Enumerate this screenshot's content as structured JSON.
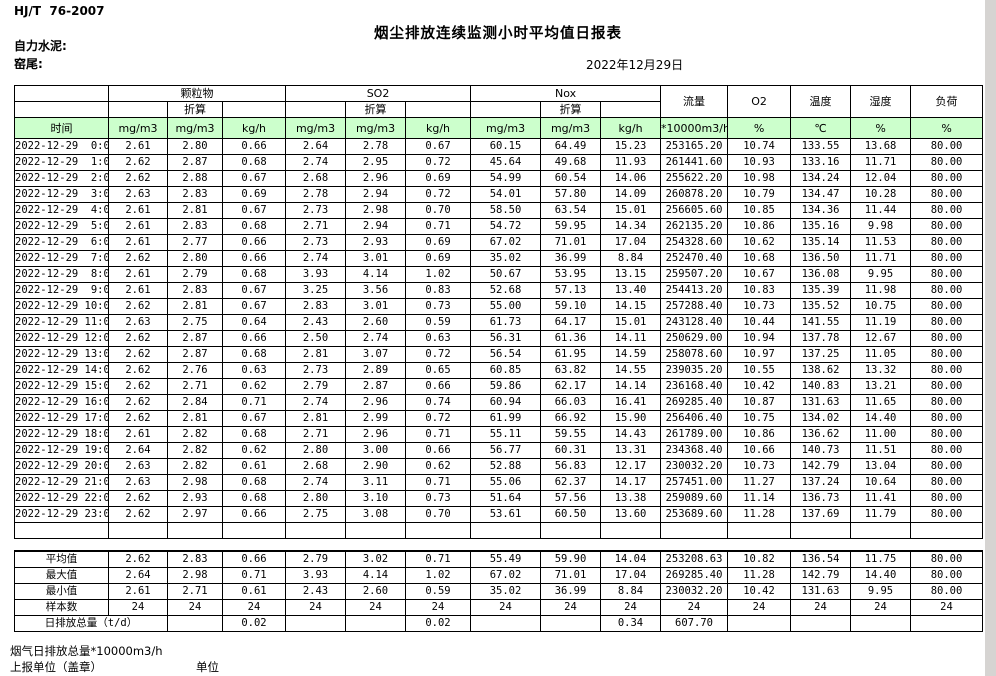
{
  "header": {
    "standard": "HJ/T  76-2007",
    "title": "烟尘排放连续监测小时平均值日报表",
    "company": "自力水泥:",
    "location": "窑尾:",
    "date": "2022年12月29日"
  },
  "table": {
    "header": {
      "time": "时间",
      "groups": [
        {
          "label": "颗粒物"
        },
        {
          "label": "SO2"
        },
        {
          "label": "Nox"
        }
      ],
      "converted": "折算",
      "flow": "流量",
      "o2": "O2",
      "temperature": "温度",
      "humidity": "湿度",
      "load": "负荷",
      "unit_mgm3": "mg/m3",
      "unit_kgh": "kg/h",
      "unit_flow": "*10000m3/h",
      "unit_percent": "%",
      "unit_celsius": "℃"
    },
    "rows": [
      [
        "2022-12-29  0:00",
        "2.61",
        "2.80",
        "0.66",
        "2.64",
        "2.78",
        "0.67",
        "60.15",
        "64.49",
        "15.23",
        "253165.20",
        "10.74",
        "133.55",
        "13.68",
        "80.00"
      ],
      [
        "2022-12-29  1:00",
        "2.62",
        "2.87",
        "0.68",
        "2.74",
        "2.95",
        "0.72",
        "45.64",
        "49.68",
        "11.93",
        "261441.60",
        "10.93",
        "133.16",
        "11.71",
        "80.00"
      ],
      [
        "2022-12-29  2:00",
        "2.62",
        "2.88",
        "0.67",
        "2.68",
        "2.96",
        "0.69",
        "54.99",
        "60.54",
        "14.06",
        "255622.20",
        "10.98",
        "134.24",
        "12.04",
        "80.00"
      ],
      [
        "2022-12-29  3:00",
        "2.63",
        "2.83",
        "0.69",
        "2.78",
        "2.94",
        "0.72",
        "54.01",
        "57.80",
        "14.09",
        "260878.20",
        "10.79",
        "134.47",
        "10.28",
        "80.00"
      ],
      [
        "2022-12-29  4:00",
        "2.61",
        "2.81",
        "0.67",
        "2.73",
        "2.98",
        "0.70",
        "58.50",
        "63.54",
        "15.01",
        "256605.60",
        "10.85",
        "134.36",
        "11.44",
        "80.00"
      ],
      [
        "2022-12-29  5:00",
        "2.61",
        "2.83",
        "0.68",
        "2.71",
        "2.94",
        "0.71",
        "54.72",
        "59.95",
        "14.34",
        "262135.20",
        "10.86",
        "135.16",
        "9.98",
        "80.00"
      ],
      [
        "2022-12-29  6:00",
        "2.61",
        "2.77",
        "0.66",
        "2.73",
        "2.93",
        "0.69",
        "67.02",
        "71.01",
        "17.04",
        "254328.60",
        "10.62",
        "135.14",
        "11.53",
        "80.00"
      ],
      [
        "2022-12-29  7:00",
        "2.62",
        "2.80",
        "0.66",
        "2.74",
        "3.01",
        "0.69",
        "35.02",
        "36.99",
        "8.84",
        "252470.40",
        "10.68",
        "136.50",
        "11.71",
        "80.00"
      ],
      [
        "2022-12-29  8:00",
        "2.61",
        "2.79",
        "0.68",
        "3.93",
        "4.14",
        "1.02",
        "50.67",
        "53.95",
        "13.15",
        "259507.20",
        "10.67",
        "136.08",
        "9.95",
        "80.00"
      ],
      [
        "2022-12-29  9:00",
        "2.61",
        "2.83",
        "0.67",
        "3.25",
        "3.56",
        "0.83",
        "52.68",
        "57.13",
        "13.40",
        "254413.20",
        "10.83",
        "135.39",
        "11.98",
        "80.00"
      ],
      [
        "2022-12-29 10:00",
        "2.62",
        "2.81",
        "0.67",
        "2.83",
        "3.01",
        "0.73",
        "55.00",
        "59.10",
        "14.15",
        "257288.40",
        "10.73",
        "135.52",
        "10.75",
        "80.00"
      ],
      [
        "2022-12-29 11:00",
        "2.63",
        "2.75",
        "0.64",
        "2.43",
        "2.60",
        "0.59",
        "61.73",
        "64.17",
        "15.01",
        "243128.40",
        "10.44",
        "141.55",
        "11.19",
        "80.00"
      ],
      [
        "2022-12-29 12:00",
        "2.62",
        "2.87",
        "0.66",
        "2.50",
        "2.74",
        "0.63",
        "56.31",
        "61.36",
        "14.11",
        "250629.00",
        "10.94",
        "137.78",
        "12.67",
        "80.00"
      ],
      [
        "2022-12-29 13:00",
        "2.62",
        "2.87",
        "0.68",
        "2.81",
        "3.07",
        "0.72",
        "56.54",
        "61.95",
        "14.59",
        "258078.60",
        "10.97",
        "137.25",
        "11.05",
        "80.00"
      ],
      [
        "2022-12-29 14:00",
        "2.62",
        "2.76",
        "0.63",
        "2.73",
        "2.89",
        "0.65",
        "60.85",
        "63.82",
        "14.55",
        "239035.20",
        "10.55",
        "138.62",
        "13.32",
        "80.00"
      ],
      [
        "2022-12-29 15:00",
        "2.62",
        "2.71",
        "0.62",
        "2.79",
        "2.87",
        "0.66",
        "59.86",
        "62.17",
        "14.14",
        "236168.40",
        "10.42",
        "140.83",
        "13.21",
        "80.00"
      ],
      [
        "2022-12-29 16:00",
        "2.62",
        "2.84",
        "0.71",
        "2.74",
        "2.96",
        "0.74",
        "60.94",
        "66.03",
        "16.41",
        "269285.40",
        "10.87",
        "131.63",
        "11.65",
        "80.00"
      ],
      [
        "2022-12-29 17:00",
        "2.62",
        "2.81",
        "0.67",
        "2.81",
        "2.99",
        "0.72",
        "61.99",
        "66.92",
        "15.90",
        "256406.40",
        "10.75",
        "134.02",
        "14.40",
        "80.00"
      ],
      [
        "2022-12-29 18:00",
        "2.61",
        "2.82",
        "0.68",
        "2.71",
        "2.96",
        "0.71",
        "55.11",
        "59.55",
        "14.43",
        "261789.00",
        "10.86",
        "136.62",
        "11.00",
        "80.00"
      ],
      [
        "2022-12-29 19:00",
        "2.64",
        "2.82",
        "0.62",
        "2.80",
        "3.00",
        "0.66",
        "56.77",
        "60.31",
        "13.31",
        "234368.40",
        "10.66",
        "140.73",
        "11.51",
        "80.00"
      ],
      [
        "2022-12-29 20:00",
        "2.63",
        "2.82",
        "0.61",
        "2.68",
        "2.90",
        "0.62",
        "52.88",
        "56.83",
        "12.17",
        "230032.20",
        "10.73",
        "142.79",
        "13.04",
        "80.00"
      ],
      [
        "2022-12-29 21:00",
        "2.63",
        "2.98",
        "0.68",
        "2.74",
        "3.11",
        "0.71",
        "55.06",
        "62.37",
        "14.17",
        "257451.00",
        "11.27",
        "137.24",
        "10.64",
        "80.00"
      ],
      [
        "2022-12-29 22:00",
        "2.62",
        "2.93",
        "0.68",
        "2.80",
        "3.10",
        "0.73",
        "51.64",
        "57.56",
        "13.38",
        "259089.60",
        "11.14",
        "136.73",
        "11.41",
        "80.00"
      ],
      [
        "2022-12-29 23:00",
        "2.62",
        "2.97",
        "0.66",
        "2.75",
        "3.08",
        "0.70",
        "53.61",
        "60.50",
        "13.60",
        "253689.60",
        "11.28",
        "137.69",
        "11.79",
        "80.00"
      ]
    ],
    "summary_rows": [
      {
        "label": "平均值",
        "values": [
          "2.62",
          "2.83",
          "0.66",
          "2.79",
          "3.02",
          "0.71",
          "55.49",
          "59.90",
          "14.04",
          "253208.63",
          "10.82",
          "136.54",
          "11.75",
          "80.00"
        ]
      },
      {
        "label": "最大值",
        "values": [
          "2.64",
          "2.98",
          "0.71",
          "3.93",
          "4.14",
          "1.02",
          "67.02",
          "71.01",
          "17.04",
          "269285.40",
          "11.28",
          "142.79",
          "14.40",
          "80.00"
        ]
      },
      {
        "label": "最小值",
        "values": [
          "2.61",
          "2.71",
          "0.61",
          "2.43",
          "2.60",
          "0.59",
          "35.02",
          "36.99",
          "8.84",
          "230032.20",
          "10.42",
          "131.63",
          "9.95",
          "80.00"
        ]
      },
      {
        "label": "样本数",
        "values": [
          "24",
          "24",
          "24",
          "24",
          "24",
          "24",
          "24",
          "24",
          "24",
          "24",
          "24",
          "24",
          "24",
          "24"
        ]
      }
    ],
    "daily_total_row": {
      "label": "日排放总量（t/d）",
      "values": [
        "",
        "0.02",
        "",
        "",
        "0.02",
        "",
        "",
        "0.34",
        "607.70",
        "",
        "",
        "",
        ""
      ]
    }
  },
  "footer": {
    "note": "烟气日排放总量*10000m3/h",
    "report_unit": "上报单位（盖章）",
    "unit": "单位"
  }
}
